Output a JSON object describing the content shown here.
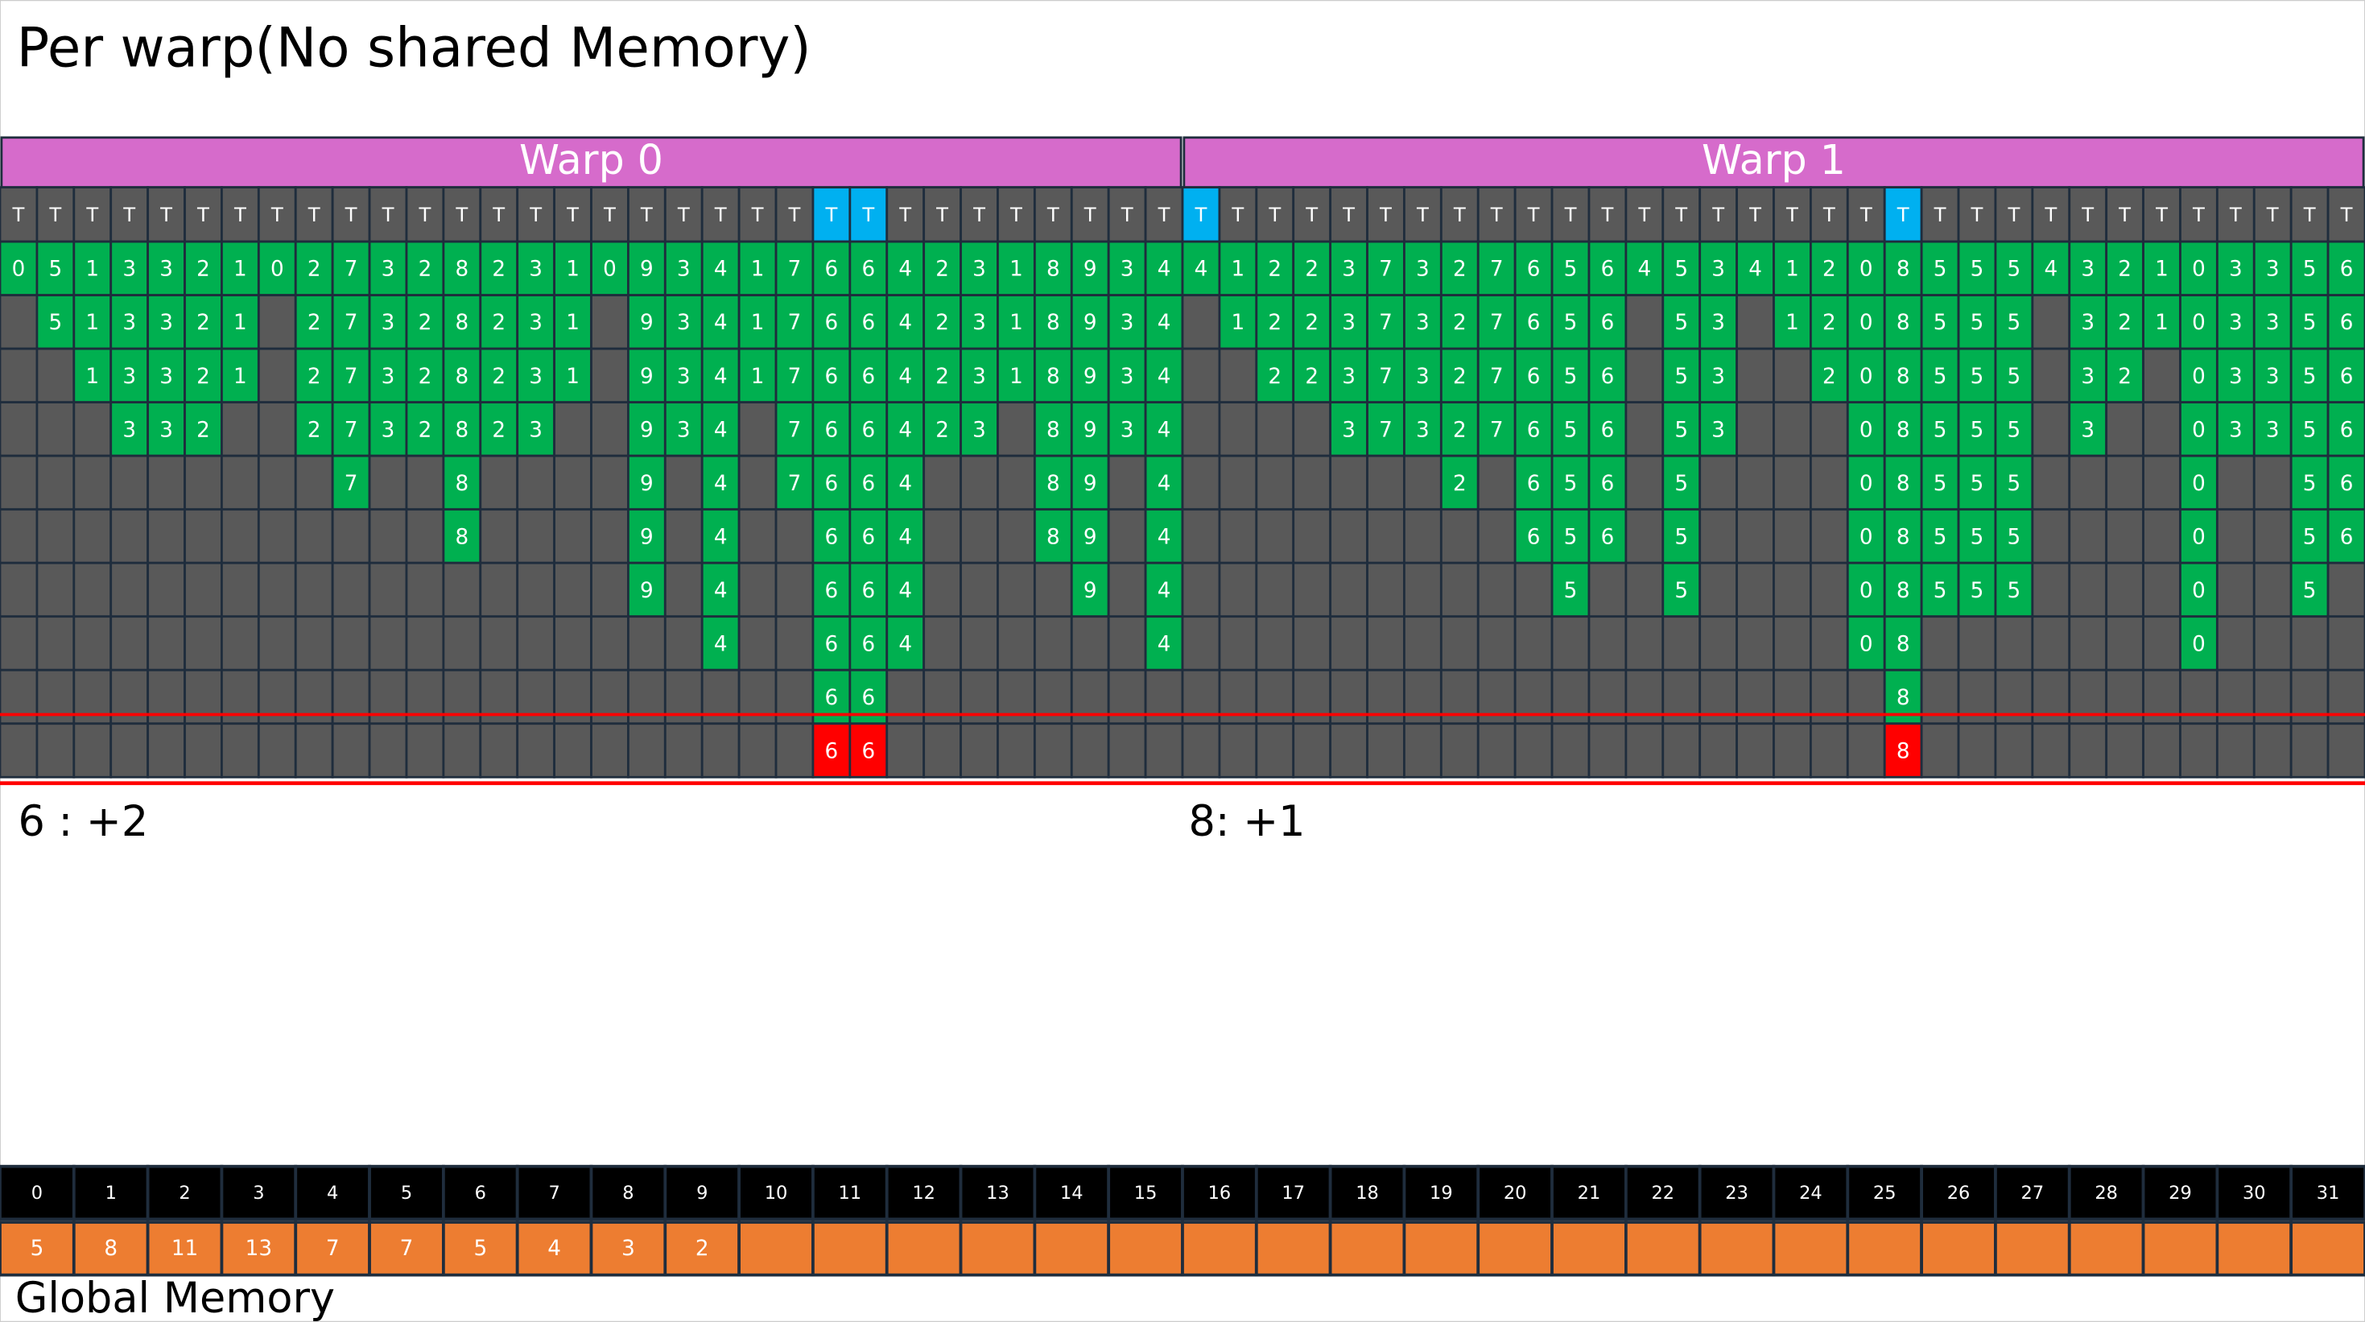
{
  "title": "Per warp(No shared Memory)",
  "warps": [
    {
      "title": "Warp 0"
    },
    {
      "title": "Warp 1"
    }
  ],
  "threads": [
    "T",
    "T",
    "T",
    "T",
    "T",
    "T",
    "T",
    "T",
    "T",
    "T",
    "T",
    "T",
    "T",
    "T",
    "T",
    "T",
    "T",
    "T",
    "T",
    "T",
    "T",
    "T",
    "T",
    "T",
    "T",
    "T",
    "T",
    "T",
    "T",
    "T",
    "T",
    "T",
    "T",
    "T",
    "T",
    "T",
    "T",
    "T",
    "T",
    "T",
    "T",
    "T",
    "T",
    "T",
    "T",
    "T",
    "T",
    "T",
    "T",
    "T",
    "T",
    "T",
    "T",
    "T",
    "T",
    "T",
    "T",
    "T",
    "T",
    "T",
    "T",
    "T",
    "T",
    "T"
  ],
  "grid": {
    "rows": [
      [
        0,
        5,
        1,
        3,
        3,
        2,
        1,
        0,
        2,
        7,
        3,
        2,
        8,
        2,
        3,
        1,
        0,
        9,
        3,
        4,
        1,
        7,
        6,
        6,
        4,
        2,
        3,
        1,
        8,
        9,
        3,
        4,
        4,
        1,
        2,
        2,
        3,
        7,
        3,
        2,
        7,
        6,
        5,
        6,
        4,
        5,
        3,
        4,
        1,
        2,
        0,
        8,
        5,
        5,
        5,
        4,
        3,
        2,
        1,
        0,
        3,
        3,
        5,
        6
      ],
      [
        null,
        5,
        1,
        3,
        3,
        2,
        1,
        null,
        2,
        7,
        3,
        2,
        8,
        2,
        3,
        1,
        null,
        9,
        3,
        4,
        1,
        7,
        6,
        6,
        4,
        2,
        3,
        1,
        8,
        9,
        3,
        4,
        null,
        1,
        2,
        2,
        3,
        7,
        3,
        2,
        7,
        6,
        5,
        6,
        null,
        5,
        3,
        null,
        1,
        2,
        0,
        8,
        5,
        5,
        5,
        null,
        3,
        2,
        1,
        0,
        3,
        3,
        5,
        6
      ],
      [
        null,
        null,
        1,
        3,
        3,
        2,
        1,
        null,
        2,
        7,
        3,
        2,
        8,
        2,
        3,
        1,
        null,
        9,
        3,
        4,
        1,
        7,
        6,
        6,
        4,
        2,
        3,
        1,
        8,
        9,
        3,
        4,
        null,
        null,
        2,
        2,
        3,
        7,
        3,
        2,
        7,
        6,
        5,
        6,
        null,
        5,
        3,
        null,
        null,
        2,
        0,
        8,
        5,
        5,
        5,
        null,
        3,
        2,
        null,
        0,
        3,
        3,
        5,
        6
      ],
      [
        null,
        null,
        null,
        3,
        3,
        2,
        null,
        null,
        2,
        7,
        3,
        2,
        8,
        2,
        3,
        null,
        null,
        9,
        3,
        4,
        null,
        7,
        6,
        6,
        4,
        2,
        3,
        null,
        8,
        9,
        3,
        4,
        null,
        null,
        null,
        null,
        3,
        7,
        3,
        2,
        7,
        6,
        5,
        6,
        null,
        5,
        3,
        null,
        null,
        null,
        0,
        8,
        5,
        5,
        5,
        null,
        3,
        null,
        null,
        0,
        3,
        3,
        5,
        6
      ],
      [
        null,
        null,
        null,
        null,
        null,
        null,
        null,
        null,
        null,
        7,
        null,
        null,
        8,
        null,
        null,
        null,
        null,
        9,
        null,
        4,
        null,
        7,
        6,
        6,
        4,
        null,
        null,
        null,
        8,
        9,
        null,
        4,
        null,
        null,
        null,
        null,
        null,
        null,
        null,
        2,
        null,
        6,
        5,
        6,
        null,
        5,
        null,
        null,
        null,
        null,
        0,
        8,
        5,
        5,
        5,
        null,
        null,
        null,
        null,
        0,
        null,
        null,
        5,
        6
      ],
      [
        null,
        null,
        null,
        null,
        null,
        null,
        null,
        null,
        null,
        null,
        null,
        null,
        8,
        null,
        null,
        null,
        null,
        9,
        null,
        4,
        null,
        null,
        6,
        6,
        4,
        null,
        null,
        null,
        8,
        9,
        null,
        4,
        null,
        null,
        null,
        null,
        null,
        null,
        null,
        null,
        null,
        6,
        5,
        6,
        null,
        5,
        null,
        null,
        null,
        null,
        0,
        8,
        5,
        5,
        5,
        null,
        null,
        null,
        null,
        0,
        null,
        null,
        5,
        6
      ],
      [
        null,
        null,
        null,
        null,
        null,
        null,
        null,
        null,
        null,
        null,
        null,
        null,
        null,
        null,
        null,
        null,
        null,
        9,
        null,
        4,
        null,
        null,
        6,
        6,
        4,
        null,
        null,
        null,
        null,
        9,
        null,
        4,
        null,
        null,
        null,
        null,
        null,
        null,
        null,
        null,
        null,
        null,
        5,
        null,
        null,
        5,
        null,
        null,
        null,
        null,
        0,
        8,
        5,
        5,
        5,
        null,
        null,
        null,
        null,
        0,
        null,
        null,
        5,
        null
      ],
      [
        null,
        null,
        null,
        null,
        null,
        null,
        null,
        null,
        null,
        null,
        null,
        null,
        null,
        null,
        null,
        null,
        null,
        null,
        null,
        4,
        null,
        null,
        6,
        6,
        4,
        null,
        null,
        null,
        null,
        null,
        null,
        4,
        null,
        null,
        null,
        null,
        null,
        null,
        null,
        null,
        null,
        null,
        null,
        null,
        null,
        null,
        null,
        null,
        null,
        null,
        0,
        8,
        null,
        null,
        null,
        null,
        null,
        null,
        null,
        0,
        null,
        null,
        null,
        null
      ],
      [
        null,
        null,
        null,
        null,
        null,
        null,
        null,
        null,
        null,
        null,
        null,
        null,
        null,
        null,
        null,
        null,
        null,
        null,
        null,
        null,
        null,
        null,
        6,
        6,
        null,
        null,
        null,
        null,
        null,
        null,
        null,
        null,
        null,
        null,
        null,
        null,
        null,
        null,
        null,
        null,
        null,
        null,
        null,
        null,
        null,
        null,
        null,
        null,
        null,
        null,
        null,
        8,
        null,
        null,
        null,
        null,
        null,
        null,
        null,
        null,
        null,
        null,
        null,
        null
      ],
      [
        null,
        null,
        null,
        null,
        null,
        null,
        null,
        null,
        null,
        null,
        null,
        null,
        null,
        null,
        null,
        null,
        null,
        null,
        null,
        null,
        null,
        null,
        6,
        6,
        null,
        null,
        null,
        null,
        null,
        null,
        null,
        null,
        null,
        null,
        null,
        null,
        null,
        null,
        null,
        null,
        null,
        null,
        null,
        null,
        null,
        null,
        null,
        null,
        null,
        null,
        null,
        8,
        null,
        null,
        null,
        null,
        null,
        null,
        null,
        null,
        null,
        null,
        null,
        null
      ]
    ]
  },
  "notes": [
    "6 : +2",
    "8: +1"
  ],
  "global_memory": {
    "label": "Global Memory",
    "indices": [
      0,
      1,
      2,
      3,
      4,
      5,
      6,
      7,
      8,
      9,
      10,
      11,
      12,
      13,
      14,
      15,
      16,
      17,
      18,
      19,
      20,
      21,
      22,
      23,
      24,
      25,
      26,
      27,
      28,
      29,
      30,
      31
    ],
    "values": [
      5,
      8,
      11,
      13,
      7,
      7,
      5,
      4,
      3,
      2,
      null,
      null,
      null,
      null,
      null,
      null,
      null,
      null,
      null,
      null,
      null,
      null,
      null,
      null,
      null,
      null,
      null,
      null,
      null,
      null,
      null,
      null
    ]
  }
}
